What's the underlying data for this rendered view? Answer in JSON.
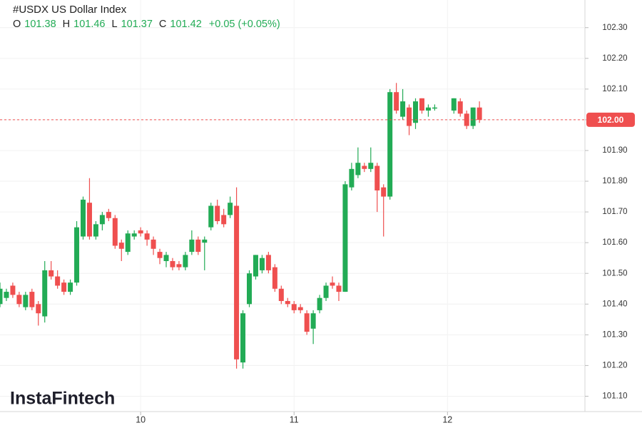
{
  "chart_data": {
    "type": "candlestick",
    "title": "#USDX US Dollar Index",
    "ohlc_legend": [
      {
        "label": "O",
        "value": 101.38
      },
      {
        "label": "H",
        "value": 101.46
      },
      {
        "label": "L",
        "value": 101.37
      },
      {
        "label": "C",
        "value": 101.42
      }
    ],
    "change": "+0.05 (+0.05%)",
    "watermark": "InstaFintech",
    "up_color": "#22ab55",
    "down_color": "#ef4f4f",
    "grid": true,
    "xlim": [
      0,
      91.5
    ],
    "xticks": [
      {
        "value": 22,
        "label": "10"
      },
      {
        "value": 46,
        "label": "11"
      },
      {
        "value": 70,
        "label": "12"
      }
    ],
    "ylim": [
      101.05,
      102.39
    ],
    "yticks": [
      {
        "value": 101.1,
        "label": "101.10"
      },
      {
        "value": 101.2,
        "label": "101.20"
      },
      {
        "value": 101.3,
        "label": "101.30"
      },
      {
        "value": 101.4,
        "label": "101.40"
      },
      {
        "value": 101.5,
        "label": "101.50"
      },
      {
        "value": 101.6,
        "label": "101.60"
      },
      {
        "value": 101.7,
        "label": "101.70"
      },
      {
        "value": 101.8,
        "label": "101.80"
      },
      {
        "value": 101.9,
        "label": "101.90"
      },
      {
        "value": 102.0,
        "label": "102.00"
      },
      {
        "value": 102.1,
        "label": "102.10"
      },
      {
        "value": 102.2,
        "label": "102.20"
      },
      {
        "value": 102.3,
        "label": "102.30"
      }
    ],
    "current_price": {
      "value": 102.0,
      "label": "102.00"
    },
    "x": [
      0,
      1,
      2,
      3,
      4,
      5,
      6,
      7,
      8,
      9,
      10,
      11,
      12,
      13,
      14,
      15,
      16,
      17,
      18,
      19,
      20,
      21,
      22,
      23,
      24,
      25,
      26,
      27,
      28,
      29,
      30,
      31,
      32,
      33,
      34,
      35,
      36,
      37,
      38,
      39,
      40,
      41,
      42,
      43,
      44,
      45,
      46,
      47,
      48,
      49,
      50,
      51,
      52,
      53,
      54,
      55,
      56,
      57,
      58,
      59,
      60,
      61,
      62,
      63,
      64,
      65,
      66,
      67,
      68,
      71,
      72,
      73,
      74,
      75
    ],
    "open": [
      101.4,
      101.42,
      101.46,
      101.43,
      101.39,
      101.44,
      101.4,
      101.36,
      101.51,
      101.49,
      101.47,
      101.44,
      101.47,
      101.62,
      101.73,
      101.62,
      101.66,
      101.7,
      101.68,
      101.6,
      101.57,
      101.62,
      101.64,
      101.63,
      101.61,
      101.57,
      101.54,
      101.54,
      101.53,
      101.52,
      101.57,
      101.61,
      101.6,
      101.65,
      101.72,
      101.69,
      101.69,
      101.72,
      101.21,
      101.4,
      101.49,
      101.51,
      101.56,
      101.52,
      101.45,
      101.41,
      101.4,
      101.39,
      101.37,
      101.32,
      101.38,
      101.42,
      101.47,
      101.46,
      101.44,
      101.78,
      101.82,
      101.85,
      101.84,
      101.85,
      101.78,
      101.75,
      102.09,
      102.01,
      102.04,
      101.99,
      102.07,
      102.03,
      102.04,
      102.03,
      102.06,
      102.02,
      101.98,
      102.04
    ],
    "high": [
      101.47,
      101.45,
      101.47,
      101.44,
      101.44,
      101.45,
      101.41,
      101.54,
      101.54,
      101.51,
      101.48,
      101.48,
      101.67,
      101.75,
      101.81,
      101.67,
      101.7,
      101.71,
      101.69,
      101.61,
      101.64,
      101.64,
      101.65,
      101.64,
      101.62,
      101.58,
      101.57,
      101.55,
      101.54,
      101.57,
      101.64,
      101.62,
      101.62,
      101.73,
      101.74,
      101.71,
      101.75,
      101.78,
      101.38,
      101.51,
      101.56,
      101.56,
      101.57,
      101.53,
      101.46,
      101.42,
      101.41,
      101.4,
      101.38,
      101.38,
      101.43,
      101.47,
      101.49,
      101.47,
      101.8,
      101.86,
      101.91,
      101.86,
      101.91,
      101.86,
      101.79,
      102.1,
      102.12,
      102.1,
      102.05,
      102.07,
      102.07,
      102.05,
      102.05,
      102.07,
      102.07,
      102.03,
      102.04,
      102.06
    ],
    "low": [
      101.39,
      101.41,
      101.42,
      101.39,
      101.38,
      101.38,
      101.33,
      101.34,
      101.48,
      101.45,
      101.43,
      101.43,
      101.46,
      101.61,
      101.61,
      101.61,
      101.64,
      101.67,
      101.58,
      101.54,
      101.56,
      101.61,
      101.62,
      101.59,
      101.56,
      101.53,
      101.52,
      101.51,
      101.51,
      101.51,
      101.56,
      101.56,
      101.51,
      101.64,
      101.66,
      101.65,
      101.68,
      101.19,
      101.19,
      101.39,
      101.48,
      101.5,
      101.5,
      101.44,
      101.4,
      101.39,
      101.37,
      101.37,
      101.3,
      101.27,
      101.37,
      101.41,
      101.45,
      101.41,
      101.44,
      101.77,
      101.81,
      101.83,
      101.83,
      101.7,
      101.62,
      101.74,
      102.02,
      102.0,
      101.95,
      101.97,
      102.02,
      102.01,
      102.03,
      102.02,
      102.01,
      101.97,
      101.97,
      101.99
    ],
    "close": [
      101.45,
      101.44,
      101.43,
      101.4,
      101.43,
      101.39,
      101.37,
      101.51,
      101.49,
      101.46,
      101.44,
      101.47,
      101.65,
      101.74,
      101.62,
      101.66,
      101.69,
      101.68,
      101.59,
      101.58,
      101.63,
      101.63,
      101.63,
      101.61,
      101.58,
      101.55,
      101.56,
      101.52,
      101.52,
      101.56,
      101.61,
      101.57,
      101.61,
      101.72,
      101.67,
      101.66,
      101.73,
      101.22,
      101.37,
      101.5,
      101.56,
      101.55,
      101.51,
      101.45,
      101.41,
      101.4,
      101.38,
      101.38,
      101.31,
      101.37,
      101.42,
      101.46,
      101.46,
      101.44,
      101.79,
      101.84,
      101.86,
      101.84,
      101.86,
      101.77,
      101.75,
      102.09,
      102.03,
      102.06,
      101.98,
      102.06,
      102.03,
      102.04,
      102.04,
      102.07,
      102.02,
      101.98,
      102.04,
      102.0
    ]
  }
}
